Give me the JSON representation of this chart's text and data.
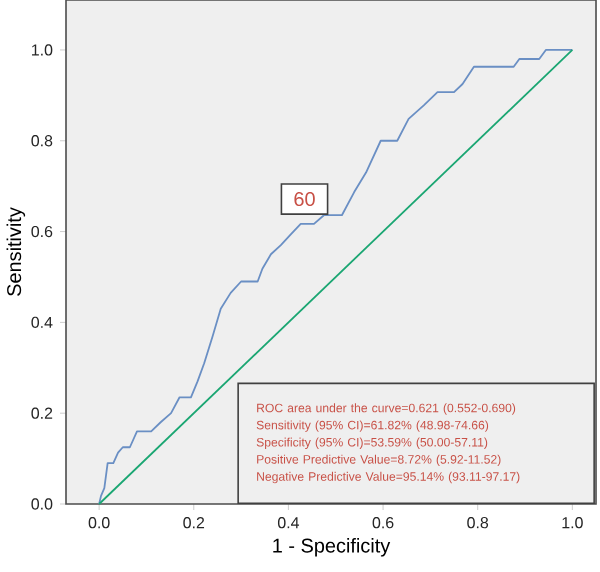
{
  "chart_data": {
    "type": "line",
    "xlabel": "1 - Specificity",
    "ylabel": "Sensitivity",
    "xlim": [
      -0.07,
      1.05
    ],
    "ylim": [
      0,
      1.11
    ],
    "xticks": [
      {
        "value": 0,
        "label": "0.0"
      },
      {
        "value": 0.2,
        "label": "0.2"
      },
      {
        "value": 0.4,
        "label": "0.4"
      },
      {
        "value": 0.6,
        "label": "0.6"
      },
      {
        "value": 0.8,
        "label": "0.8"
      },
      {
        "value": 1,
        "label": "1.0"
      }
    ],
    "yticks": [
      {
        "value": 0,
        "label": "0.0"
      },
      {
        "value": 0.2,
        "label": "0.2"
      },
      {
        "value": 0.4,
        "label": "0.4"
      },
      {
        "value": 0.6,
        "label": "0.6"
      },
      {
        "value": 0.8,
        "label": "0.8"
      },
      {
        "value": 1,
        "label": "1.0"
      }
    ],
    "grid": false,
    "marker": "none",
    "line_style": "solid",
    "series": [
      {
        "color": "#6a8fc4",
        "x": [
          0,
          0.004,
          0.011,
          0.018,
          0.03,
          0.04,
          0.05,
          0.065,
          0.08,
          0.11,
          0.13,
          0.152,
          0.17,
          0.194,
          0.208,
          0.222,
          0.24,
          0.257,
          0.278,
          0.3,
          0.316,
          0.335,
          0.345,
          0.363,
          0.384,
          0.405,
          0.426,
          0.454,
          0.475,
          0.513,
          0.539,
          0.564,
          0.595,
          0.63,
          0.654,
          0.686,
          0.715,
          0.75,
          0.768,
          0.792,
          0.876,
          0.888,
          0.93,
          0.944,
          1.0
        ],
        "values": [
          0,
          0.018,
          0.035,
          0.09,
          0.09,
          0.113,
          0.125,
          0.125,
          0.16,
          0.16,
          0.18,
          0.2,
          0.235,
          0.235,
          0.27,
          0.31,
          0.37,
          0.43,
          0.465,
          0.49,
          0.49,
          0.49,
          0.518,
          0.55,
          0.57,
          0.594,
          0.617,
          0.617,
          0.636,
          0.636,
          0.687,
          0.73,
          0.8,
          0.8,
          0.848,
          0.878,
          0.907,
          0.907,
          0.925,
          0.963,
          0.963,
          0.98,
          0.98,
          1.0,
          1.0
        ]
      },
      {
        "color": "#1aa672",
        "x": [
          0,
          1
        ],
        "values": [
          0,
          1
        ]
      }
    ],
    "annotations": [
      "60",
      "ROC area under the curve=0.621 (0.552-0.690)",
      "Sensitivity (95% CI)=61.82% (48.98-74.66)",
      "Specificity (95% CI)=53.59% (50.00-57.11)",
      "Positive Predictive Value=8.72% (5.92-11.52)",
      "Negative Predictive Value=95.14% (93.11-97.17)"
    ]
  }
}
